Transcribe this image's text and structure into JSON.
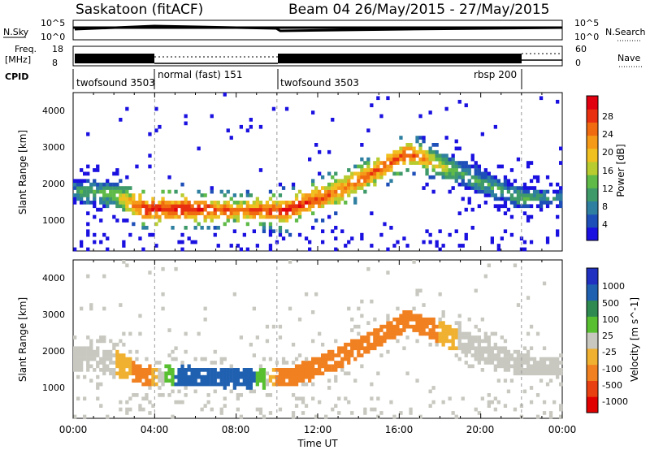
{
  "header": {
    "title": "Saskatoon (fitACF)",
    "beam_info": "Beam 04 26/May/2015 - 27/May/2015"
  },
  "top_panels": {
    "nsky_label": "N.Sky",
    "nsky_ticks": [
      "10^5",
      "10^0"
    ],
    "nsearch_label": "N.Search",
    "nsearch_ticks": [
      "10^5",
      "10^0"
    ],
    "freq_label": "Freq.",
    "freq_unit": "[MHz]",
    "freq_ticks": [
      "18",
      "8"
    ],
    "nave_label": "Nave",
    "nave_ticks": [
      "60",
      "0"
    ],
    "cpid_label": "CPID",
    "cpid_segments": [
      {
        "label": "twofsound 3503",
        "start_hr": 0
      },
      {
        "label": "normal (fast) 151",
        "start_hr": 4
      },
      {
        "label": "twofsound 3503",
        "start_hr": 10
      },
      {
        "label": "rbsp 200",
        "start_hr": 22
      }
    ]
  },
  "x_axis": {
    "label": "Time UT",
    "ticks": [
      "00:00",
      "04:00",
      "08:00",
      "12:00",
      "16:00",
      "20:00",
      "00:00"
    ]
  },
  "power_panel": {
    "ylabel": "Slant Range [km]",
    "yticks": [
      "4000",
      "3000",
      "2000",
      "1000"
    ],
    "colorbar_label": "Power [dB]",
    "colorbar_ticks": [
      "28",
      "24",
      "20",
      "16",
      "12",
      "8",
      "4"
    ],
    "colors": [
      "#1a10e0",
      "#1e4fb8",
      "#2e7fa0",
      "#3f9a6a",
      "#5fba48",
      "#b8cc30",
      "#f0c020",
      "#f59a18",
      "#f06a10",
      "#e83010",
      "#e00010"
    ]
  },
  "velocity_panel": {
    "ylabel": "Slant Range [km]",
    "yticks": [
      "4000",
      "3000",
      "2000",
      "1000"
    ],
    "colorbar_label": "Velocity [m s^-1]",
    "colorbar_ticks": [
      "1000",
      "500",
      "100",
      "25",
      "-25",
      "-100",
      "-500",
      "-1000"
    ],
    "colors": [
      "#2030c0",
      "#2060b0",
      "#2e8a50",
      "#58c030",
      "#c8c8c0",
      "#f0b030",
      "#f08020",
      "#e84010",
      "#e00000"
    ]
  },
  "chart_data": {
    "type": "heatmap",
    "x_unit": "hours UT",
    "x_range": [
      0,
      24
    ],
    "y_range_km": [
      0,
      4500
    ],
    "cpid_boundaries_hr": [
      4,
      10,
      22
    ],
    "scatter_bands": [
      {
        "hr": 0,
        "center_km": 1700,
        "halfwidth_km": 350,
        "power_db": 10,
        "velocity_ms": -20
      },
      {
        "hr": 2,
        "center_km": 1600,
        "halfwidth_km": 350,
        "power_db": 14,
        "velocity_ms": -20
      },
      {
        "hr": 3.5,
        "center_km": 1200,
        "halfwidth_km": 250,
        "power_db": 26,
        "velocity_ms": -150
      },
      {
        "hr": 6,
        "center_km": 1200,
        "halfwidth_km": 250,
        "power_db": 26,
        "velocity_ms": 300
      },
      {
        "hr": 8,
        "center_km": 1150,
        "halfwidth_km": 250,
        "power_db": 22,
        "velocity_ms": 300
      },
      {
        "hr": 10.5,
        "center_km": 1150,
        "halfwidth_km": 250,
        "power_db": 26,
        "velocity_ms": -200
      },
      {
        "hr": 13,
        "center_km": 1700,
        "halfwidth_km": 300,
        "power_db": 22,
        "velocity_ms": -150
      },
      {
        "hr": 16.5,
        "center_km": 2800,
        "halfwidth_km": 250,
        "power_db": 24,
        "velocity_ms": -200
      },
      {
        "hr": 19,
        "center_km": 2200,
        "halfwidth_km": 350,
        "power_db": 12,
        "velocity_ms": -20
      },
      {
        "hr": 22,
        "center_km": 1500,
        "halfwidth_km": 300,
        "power_db": 12,
        "velocity_ms": -20
      },
      {
        "hr": 24,
        "center_km": 1500,
        "halfwidth_km": 250,
        "power_db": 10,
        "velocity_ms": -20
      }
    ]
  }
}
